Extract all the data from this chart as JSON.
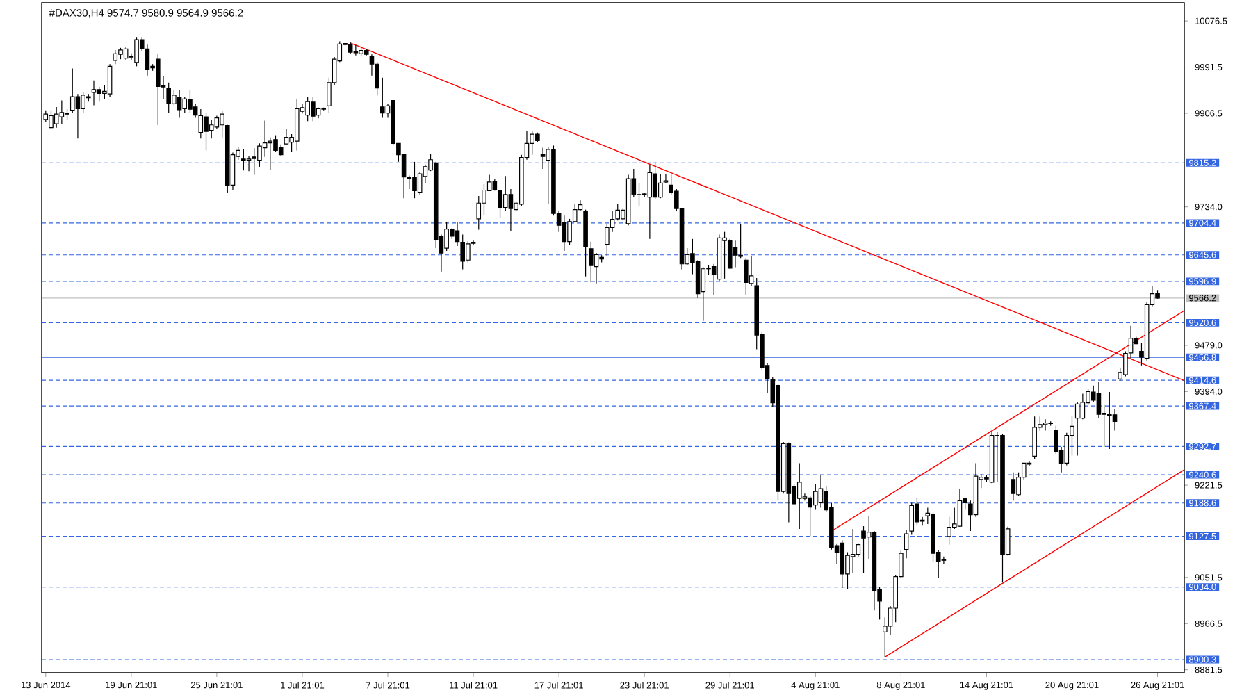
{
  "chart_data": {
    "type": "candlestick",
    "title": "#DAX30,H4  9574.7 9580.9 9564.9 9566.2",
    "categories": [
      "13 Jun 2014",
      null,
      null,
      null,
      null,
      null,
      null,
      null,
      null,
      null,
      null,
      null,
      null,
      null,
      null,
      null,
      "19 Jun 21:01",
      null,
      null,
      null,
      null,
      null,
      null,
      null,
      null,
      null,
      null,
      null,
      null,
      null,
      null,
      null,
      "25 Jun 21:01",
      null,
      null,
      null,
      null,
      null,
      null,
      null,
      null,
      null,
      null,
      null,
      null,
      null,
      null,
      null,
      "1 Jul 21:01",
      null,
      null,
      null,
      null,
      null,
      null,
      null,
      null,
      null,
      null,
      null,
      null,
      null,
      null,
      null,
      "7 Jul 21:01",
      null,
      null,
      null,
      null,
      null,
      null,
      null,
      null,
      null,
      null,
      null,
      null,
      null,
      null,
      null,
      "11 Jul 21:01",
      null,
      null,
      null,
      null,
      null,
      null,
      null,
      null,
      null,
      null,
      null,
      null,
      null,
      null,
      null,
      "17 Jul 21:01",
      null,
      null,
      null,
      null,
      null,
      null,
      null,
      null,
      null,
      null,
      null,
      null,
      null,
      null,
      null,
      "23 Jul 21:01",
      null,
      null,
      null,
      null,
      null,
      null,
      null,
      null,
      null,
      null,
      null,
      null,
      null,
      null,
      null,
      "29 Jul 21:01",
      null,
      null,
      null,
      null,
      null,
      null,
      null,
      null,
      null,
      null,
      null,
      null,
      null,
      null,
      null,
      "4 Aug 21:01",
      null,
      null,
      null,
      null,
      null,
      null,
      null,
      null,
      null,
      null,
      null,
      null,
      null,
      null,
      null,
      "8 Aug 21:01",
      null,
      null,
      null,
      null,
      null,
      null,
      null,
      null,
      null,
      null,
      null,
      null,
      null,
      null,
      null,
      "14 Aug 21:01",
      null,
      null,
      null,
      null,
      null,
      null,
      null,
      null,
      null,
      null,
      null,
      null,
      null,
      null,
      null,
      "20 Aug 21:01",
      null,
      null,
      null,
      null,
      null,
      null,
      null,
      null,
      null,
      null,
      null,
      null,
      null,
      null,
      null,
      "26 Aug 21:01",
      null,
      null,
      null,
      null,
      null
    ],
    "ohlc": [
      [
        9895,
        9912,
        9890,
        9905
      ],
      [
        9880,
        9912,
        9877,
        9902
      ],
      [
        9887,
        9918,
        9880,
        9905
      ],
      [
        9900,
        9930,
        9887,
        9908
      ],
      [
        9907,
        9914,
        9895,
        9905
      ],
      [
        9912,
        9989,
        9907,
        9937
      ],
      [
        9937,
        9942,
        9860,
        9915
      ],
      [
        9915,
        9946,
        9907,
        9940
      ],
      [
        9937,
        9942,
        9928,
        9935
      ],
      [
        9945,
        9967,
        9921,
        9950
      ],
      [
        9950,
        9955,
        9928,
        9943
      ],
      [
        9943,
        9958,
        9933,
        9947
      ],
      [
        9942,
        9997,
        9937,
        9993
      ],
      [
        10004,
        10023,
        9997,
        10016
      ],
      [
        10015,
        10027,
        10006,
        10023
      ],
      [
        10008,
        10028,
        10004,
        10025
      ],
      [
        10012,
        10017,
        10004,
        10010
      ],
      [
        10000,
        10047,
        9993,
        10042
      ],
      [
        10042,
        10047,
        10021,
        10025
      ],
      [
        10025,
        10033,
        9976,
        9988
      ],
      [
        9990,
        9997,
        9985,
        9993
      ],
      [
        10006,
        10016,
        9885,
        9956
      ],
      [
        9958,
        9975,
        9932,
        9955
      ],
      [
        9953,
        9963,
        9907,
        9924
      ],
      [
        9924,
        9950,
        9922,
        9940
      ],
      [
        9935,
        9950,
        9898,
        9913
      ],
      [
        9915,
        9937,
        9907,
        9933
      ],
      [
        9932,
        9950,
        9907,
        9914
      ],
      [
        9918,
        9924,
        9898,
        9903
      ],
      [
        9871,
        9914,
        9860,
        9902
      ],
      [
        9900,
        9907,
        9838,
        9873
      ],
      [
        9875,
        9894,
        9860,
        9885
      ],
      [
        9881,
        9902,
        9877,
        9898
      ],
      [
        9885,
        9911,
        9862,
        9905
      ],
      [
        9884,
        9885,
        9760,
        9774
      ],
      [
        9774,
        9834,
        9765,
        9830
      ],
      [
        9827,
        9844,
        9821,
        9838
      ],
      [
        9822,
        9841,
        9801,
        9820
      ],
      [
        9820,
        9827,
        9800,
        9822
      ],
      [
        9826,
        9842,
        9793,
        9823
      ],
      [
        9820,
        9851,
        9808,
        9846
      ],
      [
        9843,
        9893,
        9826,
        9852
      ],
      [
        9852,
        9862,
        9802,
        9855
      ],
      [
        9858,
        9866,
        9836,
        9838
      ],
      [
        9844,
        9849,
        9827,
        9830
      ],
      [
        9850,
        9878,
        9849,
        9862
      ],
      [
        9853,
        9868,
        9835,
        9862
      ],
      [
        9855,
        9933,
        9838,
        9915
      ],
      [
        9910,
        9924,
        9906,
        9917
      ],
      [
        9903,
        9937,
        9892,
        9928
      ],
      [
        9927,
        9937,
        9892,
        9901
      ],
      [
        9903,
        9917,
        9897,
        9915
      ],
      [
        9915,
        9917,
        9912,
        9914
      ],
      [
        9920,
        9972,
        9907,
        9963
      ],
      [
        9963,
        10010,
        9958,
        10006
      ],
      [
        10003,
        10039,
        10001,
        10034
      ],
      [
        10033,
        10036,
        10031,
        10035
      ],
      [
        10033,
        10038,
        10016,
        10019
      ],
      [
        10020,
        10032,
        10013,
        10018
      ],
      [
        10016,
        10027,
        10011,
        10022
      ],
      [
        10022,
        10025,
        10013,
        10015
      ],
      [
        10012,
        10015,
        9976,
        9997
      ],
      [
        9997,
        10001,
        9939,
        9953
      ],
      [
        9918,
        9972,
        9898,
        9907
      ],
      [
        9907,
        9924,
        9898,
        9920
      ],
      [
        9930,
        9930,
        9849,
        9851
      ],
      [
        9851,
        9851,
        9817,
        9830
      ],
      [
        9830,
        9830,
        9750,
        9789
      ],
      [
        9789,
        9792,
        9767,
        9787
      ],
      [
        9788,
        9817,
        9750,
        9764
      ],
      [
        9761,
        9798,
        9757,
        9795
      ],
      [
        9790,
        9812,
        9778,
        9808
      ],
      [
        9802,
        9831,
        9800,
        9821
      ],
      [
        9815,
        9817,
        9658,
        9674
      ],
      [
        9679,
        9683,
        9615,
        9649
      ],
      [
        9658,
        9706,
        9653,
        9693
      ],
      [
        9693,
        9695,
        9675,
        9680
      ],
      [
        9690,
        9706,
        9662,
        9670
      ],
      [
        9669,
        9683,
        9619,
        9634
      ],
      [
        9636,
        9671,
        9632,
        9666
      ],
      [
        9667,
        9672,
        9664,
        9669
      ],
      [
        9712,
        9754,
        9692,
        9741
      ],
      [
        9741,
        9776,
        9718,
        9765
      ],
      [
        9764,
        9793,
        9763,
        9780
      ],
      [
        9781,
        9785,
        9764,
        9765
      ],
      [
        9765,
        9765,
        9714,
        9733
      ],
      [
        9733,
        9791,
        9726,
        9757
      ],
      [
        9757,
        9767,
        9689,
        9731
      ],
      [
        9729,
        9744,
        9726,
        9741
      ],
      [
        9739,
        9830,
        9735,
        9825
      ],
      [
        9825,
        9873,
        9821,
        9851
      ],
      [
        9851,
        9873,
        9830,
        9868
      ],
      [
        9868,
        9871,
        9854,
        9856
      ],
      [
        9830,
        9843,
        9804,
        9827
      ],
      [
        9820,
        9844,
        9739,
        9840
      ],
      [
        9840,
        9847,
        9718,
        9722
      ],
      [
        9722,
        9726,
        9688,
        9700
      ],
      [
        9705,
        9718,
        9653,
        9670
      ],
      [
        9670,
        9712,
        9664,
        9707
      ],
      [
        9707,
        9740,
        9705,
        9729
      ],
      [
        9729,
        9746,
        9726,
        9738
      ],
      [
        9726,
        9729,
        9606,
        9660
      ],
      [
        9657,
        9670,
        9595,
        9626
      ],
      [
        9624,
        9649,
        9593,
        9646
      ],
      [
        9641,
        9645,
        9632,
        9638
      ],
      [
        9665,
        9703,
        9643,
        9696
      ],
      [
        9696,
        9726,
        9688,
        9711
      ],
      [
        9712,
        9739,
        9709,
        9728
      ],
      [
        9712,
        9731,
        9709,
        9728
      ],
      [
        9703,
        9793,
        9700,
        9786
      ],
      [
        9786,
        9804,
        9752,
        9757
      ],
      [
        9757,
        9778,
        9735,
        9757
      ],
      [
        9757,
        9760,
        9752,
        9758
      ],
      [
        9752,
        9812,
        9675,
        9797
      ],
      [
        9795,
        9817,
        9748,
        9752
      ],
      [
        9752,
        9795,
        9750,
        9778
      ],
      [
        9780,
        9795,
        9778,
        9782
      ],
      [
        9774,
        9793,
        9757,
        9761
      ],
      [
        9763,
        9767,
        9727,
        9731
      ],
      [
        9731,
        9731,
        9619,
        9629
      ],
      [
        9629,
        9658,
        9627,
        9646
      ],
      [
        9648,
        9675,
        9610,
        9631
      ],
      [
        9634,
        9636,
        9566,
        9574
      ],
      [
        9578,
        9623,
        9524,
        9620
      ],
      [
        9620,
        9627,
        9609,
        9621
      ],
      [
        9624,
        9629,
        9572,
        9610
      ],
      [
        9601,
        9683,
        9597,
        9677
      ],
      [
        9672,
        9688,
        9602,
        9677
      ],
      [
        9672,
        9675,
        9620,
        9621
      ],
      [
        9660,
        9672,
        9623,
        9645
      ],
      [
        9645,
        9703,
        9640,
        9643
      ],
      [
        9636,
        9640,
        9571,
        9595
      ],
      [
        9593,
        9644,
        9589,
        9607
      ],
      [
        9589,
        9603,
        9472,
        9498
      ],
      [
        9500,
        9503,
        9434,
        9438
      ],
      [
        9442,
        9447,
        9391,
        9417
      ],
      [
        9416,
        9421,
        9365,
        9373
      ],
      [
        9405,
        9408,
        9193,
        9210
      ],
      [
        9210,
        9301,
        9206,
        9298
      ],
      [
        9298,
        9300,
        9153,
        9206
      ],
      [
        9219,
        9223,
        9185,
        9187
      ],
      [
        9197,
        9262,
        9141,
        9227
      ],
      [
        9197,
        9206,
        9193,
        9200
      ],
      [
        9198,
        9202,
        9128,
        9181
      ],
      [
        9185,
        9223,
        9176,
        9210
      ],
      [
        9189,
        9240,
        9180,
        9215
      ],
      [
        9210,
        9219,
        9172,
        9176
      ],
      [
        9180,
        9189,
        9103,
        9107
      ],
      [
        9110,
        9113,
        9077,
        9098
      ],
      [
        9115,
        9120,
        9032,
        9058
      ],
      [
        9058,
        9098,
        9030,
        9092
      ],
      [
        9090,
        9141,
        9060,
        9094
      ],
      [
        9094,
        9113,
        9090,
        9112
      ],
      [
        9137,
        9146,
        9060,
        9124
      ],
      [
        9126,
        9165,
        9085,
        9135
      ],
      [
        9135,
        9137,
        8991,
        9027
      ],
      [
        9030,
        9034,
        8974,
        9008
      ],
      [
        8951,
        8978,
        8905,
        8962
      ],
      [
        8962,
        8999,
        8946,
        8995
      ],
      [
        8995,
        9056,
        8969,
        9053
      ],
      [
        9053,
        9101,
        9051,
        9096
      ],
      [
        9103,
        9139,
        9087,
        9132
      ],
      [
        9137,
        9189,
        9130,
        9184
      ],
      [
        9187,
        9199,
        9147,
        9154
      ],
      [
        9155,
        9163,
        9147,
        9157
      ],
      [
        9165,
        9180,
        9150,
        9170
      ],
      [
        9167,
        9171,
        9081,
        9096
      ],
      [
        9098,
        9102,
        9051,
        9081
      ],
      [
        9083,
        9090,
        9077,
        9084
      ],
      [
        9127,
        9163,
        9112,
        9144
      ],
      [
        9144,
        9180,
        9141,
        9150
      ],
      [
        9146,
        9215,
        9145,
        9193
      ],
      [
        9197,
        9199,
        9176,
        9189
      ],
      [
        9187,
        9193,
        9137,
        9167
      ],
      [
        9167,
        9262,
        9163,
        9238
      ],
      [
        9232,
        9242,
        9216,
        9236
      ],
      [
        9235,
        9240,
        9228,
        9233
      ],
      [
        9227,
        9320,
        9225,
        9313
      ],
      [
        9313,
        9320,
        9227,
        9313
      ],
      [
        9313,
        9316,
        9042,
        9094
      ],
      [
        9094,
        9145,
        9092,
        9141
      ],
      [
        9232,
        9245,
        9193,
        9206
      ],
      [
        9204,
        9245,
        9202,
        9236
      ],
      [
        9236,
        9262,
        9232,
        9262
      ],
      [
        9260,
        9266,
        9257,
        9262
      ],
      [
        9275,
        9348,
        9270,
        9328
      ],
      [
        9328,
        9348,
        9322,
        9333
      ],
      [
        9333,
        9343,
        9322,
        9336
      ],
      [
        9335,
        9339,
        9331,
        9336
      ],
      [
        9322,
        9331,
        9279,
        9283
      ],
      [
        9285,
        9292,
        9245,
        9262
      ],
      [
        9262,
        9318,
        9258,
        9313
      ],
      [
        9313,
        9348,
        9276,
        9330
      ],
      [
        9345,
        9374,
        9276,
        9371
      ],
      [
        9345,
        9390,
        9343,
        9374
      ],
      [
        9373,
        9399,
        9369,
        9394
      ],
      [
        9393,
        9405,
        9374,
        9378
      ],
      [
        9390,
        9412,
        9345,
        9352
      ],
      [
        9354,
        9369,
        9292,
        9352
      ],
      [
        9352,
        9393,
        9288,
        9350
      ],
      [
        9351,
        9361,
        9322,
        9339
      ],
      [
        9417,
        9438,
        9414,
        9429
      ],
      [
        9425,
        9468,
        9422,
        9464
      ],
      [
        9465,
        9515,
        9455,
        9492
      ],
      [
        9492,
        9495,
        9481,
        9482
      ],
      [
        9468,
        9483,
        9442,
        9457
      ],
      [
        9455,
        9559,
        9451,
        9554
      ],
      [
        9554,
        9589,
        9550,
        9574
      ],
      [
        9574.7,
        9580.9,
        9564.9,
        9566.2
      ],
      null,
      null,
      null,
      null,
      null
    ],
    "series": [
      {
        "type": "line",
        "color": "#ff0000",
        "values": [
          null,
          null,
          null,
          null,
          null,
          null,
          null,
          null,
          null,
          null,
          null,
          null,
          null,
          null,
          null,
          null,
          null,
          null,
          null,
          null,
          null,
          null,
          null,
          null,
          null,
          null,
          null,
          null,
          null,
          null,
          null,
          null,
          null,
          null,
          null,
          null,
          null,
          null,
          null,
          null,
          null,
          null,
          null,
          null,
          null,
          null,
          null,
          null,
          null,
          null,
          null,
          null,
          null,
          null,
          null,
          null,
          null,
          10036,
          null,
          null,
          null,
          null,
          null,
          null,
          null,
          null,
          null,
          null,
          null,
          null,
          null,
          null,
          null,
          null,
          null,
          null,
          null,
          null,
          null,
          null,
          null,
          null,
          null,
          null,
          null,
          null,
          null,
          null,
          null,
          null,
          null,
          null,
          null,
          null,
          null,
          null,
          null,
          null,
          null,
          null,
          null,
          null,
          null,
          null,
          null,
          null,
          null,
          null,
          null,
          null,
          null,
          null,
          null,
          null,
          null,
          null,
          null,
          null,
          null,
          null,
          null,
          null,
          null,
          null,
          null,
          null,
          null,
          null,
          null,
          null,
          null,
          null,
          null,
          null,
          null,
          null,
          null,
          null,
          null,
          null,
          null,
          null,
          null,
          null,
          null,
          null,
          null,
          null,
          null,
          null,
          null,
          null,
          null,
          null,
          null,
          null,
          null,
          null,
          null,
          null,
          null,
          null,
          null,
          null,
          null,
          null,
          null,
          null,
          null,
          null,
          null,
          null,
          null,
          null,
          null,
          null,
          null,
          null,
          null,
          null,
          null,
          null,
          null,
          null,
          null,
          null,
          null,
          null,
          null,
          null,
          null,
          null,
          null,
          null,
          null,
          null,
          null,
          null,
          null,
          null,
          null,
          null,
          null,
          null,
          null,
          null,
          null,
          null,
          null,
          null,
          null,
          null,
          null,
          9414
        ]
      },
      {
        "type": "line",
        "color": "#ff0000",
        "values": [
          null,
          null,
          null,
          null,
          null,
          null,
          null,
          null,
          null,
          null,
          null,
          null,
          null,
          null,
          null,
          null,
          null,
          null,
          null,
          null,
          null,
          null,
          null,
          null,
          null,
          null,
          null,
          null,
          null,
          null,
          null,
          null,
          null,
          null,
          null,
          null,
          null,
          null,
          null,
          null,
          null,
          null,
          null,
          null,
          null,
          null,
          null,
          null,
          null,
          null,
          null,
          null,
          null,
          null,
          null,
          null,
          null,
          null,
          null,
          null,
          null,
          null,
          null,
          null,
          null,
          null,
          null,
          null,
          null,
          null,
          null,
          null,
          null,
          null,
          null,
          null,
          null,
          null,
          null,
          null,
          null,
          null,
          null,
          null,
          null,
          null,
          null,
          null,
          null,
          null,
          null,
          null,
          null,
          null,
          null,
          null,
          null,
          null,
          null,
          null,
          null,
          null,
          null,
          null,
          null,
          null,
          null,
          null,
          null,
          null,
          null,
          null,
          null,
          null,
          null,
          null,
          null,
          null,
          null,
          null,
          null,
          null,
          null,
          null,
          null,
          null,
          null,
          null,
          null,
          null,
          null,
          null,
          null,
          null,
          null,
          null,
          null,
          null,
          null,
          null,
          null,
          null,
          null,
          null,
          null,
          null,
          null,
          9137,
          null,
          null,
          null,
          null,
          null,
          null,
          null,
          null,
          null,
          null,
          null,
          null,
          null,
          null,
          null,
          null,
          null,
          null,
          null,
          null,
          null,
          null,
          null,
          null,
          null,
          null,
          null,
          null,
          null,
          null,
          null,
          null,
          null,
          null,
          null,
          null,
          null,
          null,
          null,
          null,
          null,
          null,
          null,
          null,
          null,
          null,
          null,
          null,
          null,
          null,
          null,
          null,
          null,
          null,
          null,
          null,
          null,
          null,
          null,
          null,
          null,
          null,
          null,
          null,
          null,
          9543
        ]
      },
      {
        "type": "line",
        "color": "#ff0000",
        "values": [
          null,
          null,
          null,
          null,
          null,
          null,
          null,
          null,
          null,
          null,
          null,
          null,
          null,
          null,
          null,
          null,
          null,
          null,
          null,
          null,
          null,
          null,
          null,
          null,
          null,
          null,
          null,
          null,
          null,
          null,
          null,
          null,
          null,
          null,
          null,
          null,
          null,
          null,
          null,
          null,
          null,
          null,
          null,
          null,
          null,
          null,
          null,
          null,
          null,
          null,
          null,
          null,
          null,
          null,
          null,
          null,
          null,
          null,
          null,
          null,
          null,
          null,
          null,
          null,
          null,
          null,
          null,
          null,
          null,
          null,
          null,
          null,
          null,
          null,
          null,
          null,
          null,
          null,
          null,
          null,
          null,
          null,
          null,
          null,
          null,
          null,
          null,
          null,
          null,
          null,
          null,
          null,
          null,
          null,
          null,
          null,
          null,
          null,
          null,
          null,
          null,
          null,
          null,
          null,
          null,
          null,
          null,
          null,
          null,
          null,
          null,
          null,
          null,
          null,
          null,
          null,
          null,
          null,
          null,
          null,
          null,
          null,
          null,
          null,
          null,
          null,
          null,
          null,
          null,
          null,
          null,
          null,
          null,
          null,
          null,
          null,
          null,
          null,
          null,
          null,
          null,
          null,
          null,
          null,
          null,
          null,
          null,
          null,
          null,
          null,
          null,
          null,
          null,
          null,
          null,
          null,
          null,
          8905,
          null,
          null,
          null,
          null,
          null,
          null,
          null,
          null,
          null,
          null,
          null,
          null,
          null,
          null,
          null,
          null,
          null,
          null,
          null,
          null,
          null,
          null,
          null,
          null,
          null,
          null,
          null,
          null,
          null,
          null,
          null,
          null,
          null,
          null,
          null,
          null,
          null,
          null,
          null,
          null,
          null,
          null,
          null,
          null,
          null,
          null,
          null,
          null,
          null,
          null,
          null,
          null,
          null,
          null,
          null,
          9250
        ]
      }
    ],
    "ylim": [
      8876,
      10110
    ],
    "yticks": [
      {
        "value": 10076.5,
        "label": "10076.5"
      },
      {
        "value": 9991.5,
        "label": "9991.5"
      },
      {
        "value": 9906.5,
        "label": "9906.5"
      },
      {
        "value": 9734,
        "label": "9734.0"
      },
      {
        "value": 9479,
        "label": "9479.0"
      },
      {
        "value": 9394,
        "label": "9394.0"
      },
      {
        "value": 9221.5,
        "label": "9221.5"
      },
      {
        "value": 9051.5,
        "label": "9051.5"
      },
      {
        "value": 8966.5,
        "label": "8966.5"
      },
      {
        "value": 8881.5,
        "label": "8881.5"
      }
    ],
    "ref_lines": [
      {
        "axis": "y",
        "value": 9815.2,
        "label": "9815.2",
        "color": "#3366e0",
        "line_style": "dashed"
      },
      {
        "axis": "y",
        "value": 9704.4,
        "label": "9704.4",
        "color": "#3366e0",
        "line_style": "dashed"
      },
      {
        "axis": "y",
        "value": 9645.6,
        "label": "9645.6",
        "color": "#3366e0",
        "line_style": "dashed"
      },
      {
        "axis": "y",
        "value": 9596.9,
        "label": "9596.9",
        "color": "#3366e0",
        "line_style": "dashed"
      },
      {
        "axis": "y",
        "value": 9566.2,
        "label": "9566.2",
        "color": "#c0c0c0",
        "line_style": "solid"
      },
      {
        "axis": "y",
        "value": 9520.6,
        "label": "9520.6",
        "color": "#3366e0",
        "line_style": "dashed"
      },
      {
        "axis": "y",
        "value": 9456.8,
        "label": "9456.8",
        "color": "#3366e0",
        "line_style": "solid"
      },
      {
        "axis": "y",
        "value": 9414.6,
        "label": "9414.6",
        "color": "#3366e0",
        "line_style": "dashed"
      },
      {
        "axis": "y",
        "value": 9367.4,
        "label": "9367.4",
        "color": "#3366e0",
        "line_style": "dashed"
      },
      {
        "axis": "y",
        "value": 9292.7,
        "label": "9292.7",
        "color": "#3366e0",
        "line_style": "dashed"
      },
      {
        "axis": "y",
        "value": 9240.6,
        "label": "9240.6",
        "color": "#3366e0",
        "line_style": "dashed"
      },
      {
        "axis": "y",
        "value": 9188.6,
        "label": "9188.6",
        "color": "#3366e0",
        "line_style": "dashed"
      },
      {
        "axis": "y",
        "value": 9127.5,
        "label": "9127.5",
        "color": "#3366e0",
        "line_style": "dashed"
      },
      {
        "axis": "y",
        "value": 9034.0,
        "label": "9034.0",
        "color": "#3366e0",
        "line_style": "dashed"
      },
      {
        "axis": "y",
        "value": 8900.3,
        "label": "8900.3",
        "color": "#3366e0",
        "line_style": "dashed"
      }
    ]
  }
}
